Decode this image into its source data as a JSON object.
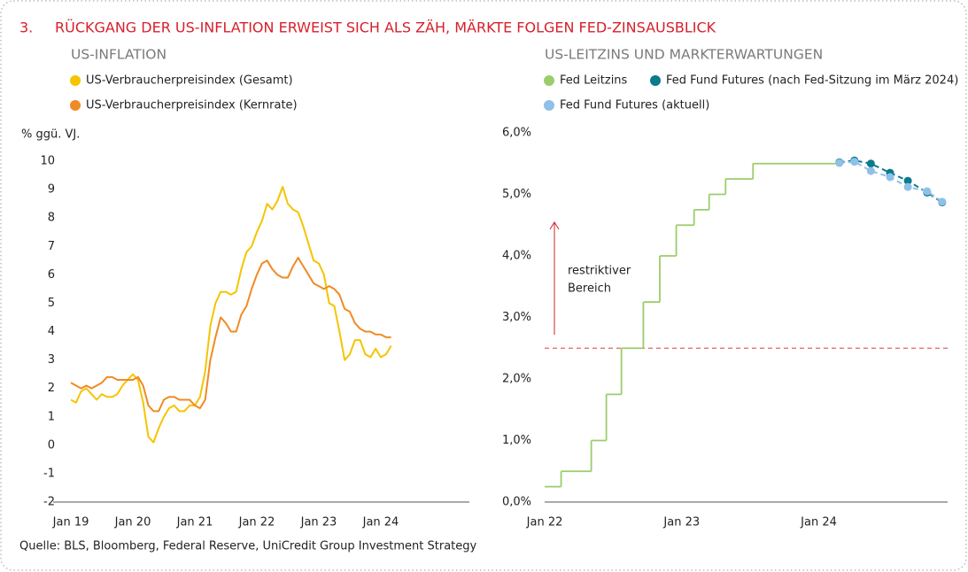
{
  "header": {
    "number": "3.",
    "title": "RÜCKGANG DER US-INFLATION ERWEIST SICH ALS ZÄH, MÄRKTE FOLGEN FED-ZINSAUSBLICK"
  },
  "chart_data": [
    {
      "type": "line",
      "title": "US-INFLATION",
      "y_label": "% ggü. VJ.",
      "categories": [
        "Jan 19",
        null,
        null,
        null,
        null,
        null,
        null,
        null,
        null,
        null,
        null,
        null,
        "Jan 20",
        null,
        null,
        null,
        null,
        null,
        null,
        null,
        null,
        null,
        null,
        null,
        "Jan 21",
        null,
        null,
        null,
        null,
        null,
        null,
        null,
        null,
        null,
        null,
        null,
        "Jan 22",
        null,
        null,
        null,
        null,
        null,
        null,
        null,
        null,
        null,
        null,
        null,
        "Jan 23",
        null,
        null,
        null,
        null,
        null,
        null,
        null,
        null,
        null,
        null,
        null,
        "Jan 24",
        null,
        null
      ],
      "series": [
        {
          "name": "US-Verbraucherpreisindex (Gesamt)",
          "color": "#f5c400",
          "values": [
            1.6,
            1.5,
            1.9,
            2.0,
            1.8,
            1.6,
            1.8,
            1.7,
            1.7,
            1.8,
            2.1,
            2.3,
            2.5,
            2.3,
            1.5,
            0.3,
            0.1,
            0.6,
            1.0,
            1.3,
            1.4,
            1.2,
            1.2,
            1.4,
            1.4,
            1.7,
            2.6,
            4.2,
            5.0,
            5.4,
            5.4,
            5.3,
            5.4,
            6.2,
            6.8,
            7.0,
            7.5,
            7.9,
            8.5,
            8.3,
            8.6,
            9.1,
            8.5,
            8.3,
            8.2,
            7.7,
            7.1,
            6.5,
            6.4,
            6.0,
            5.0,
            4.9,
            4.0,
            3.0,
            3.2,
            3.7,
            3.7,
            3.2,
            3.1,
            3.4,
            3.1,
            3.2,
            3.5
          ]
        },
        {
          "name": "US-Verbraucherpreisindex (Kernrate)",
          "color": "#f08a24",
          "values": [
            2.2,
            2.1,
            2.0,
            2.1,
            2.0,
            2.1,
            2.2,
            2.4,
            2.4,
            2.3,
            2.3,
            2.3,
            2.3,
            2.4,
            2.1,
            1.4,
            1.2,
            1.2,
            1.6,
            1.7,
            1.7,
            1.6,
            1.6,
            1.6,
            1.4,
            1.3,
            1.6,
            3.0,
            3.8,
            4.5,
            4.3,
            4.0,
            4.0,
            4.6,
            4.9,
            5.5,
            6.0,
            6.4,
            6.5,
            6.2,
            6.0,
            5.9,
            5.9,
            6.3,
            6.6,
            6.3,
            6.0,
            5.7,
            5.6,
            5.5,
            5.6,
            5.5,
            5.3,
            4.8,
            4.7,
            4.3,
            4.1,
            4.0,
            4.0,
            3.9,
            3.9,
            3.8,
            3.8
          ]
        }
      ],
      "ylim": [
        -2,
        10
      ],
      "yticks": [
        -2,
        -1,
        0,
        1,
        2,
        3,
        4,
        5,
        6,
        7,
        8,
        9,
        10
      ],
      "grid": false
    },
    {
      "type": "line",
      "title": "US-LEITZINS UND MARKTERWARTUNGEN",
      "series": [
        {
          "name": "Fed Leitzins",
          "color": "#9ccc6c",
          "step": true,
          "x": [
            2022.0,
            2022.12,
            2022.34,
            2022.45,
            2022.56,
            2022.72,
            2022.84,
            2022.96,
            2023.09,
            2023.2,
            2023.32,
            2023.52,
            2024.14
          ],
          "values": [
            0.25,
            0.5,
            1.0,
            1.75,
            2.5,
            3.25,
            4.0,
            4.5,
            4.75,
            5.0,
            5.25,
            5.5,
            5.5
          ]
        },
        {
          "name": "Fed Fund Futures (nach Fed-Sitzung im März 2024)",
          "color": "#0a7a8c",
          "dashed": true,
          "markers": true,
          "x": [
            2024.15,
            2024.26,
            2024.38,
            2024.52,
            2024.65,
            2024.79,
            2024.9
          ],
          "values": [
            5.52,
            5.55,
            5.5,
            5.35,
            5.22,
            5.03,
            4.87
          ]
        },
        {
          "name": "Fed Fund Futures (aktuell)",
          "color": "#8fc0e8",
          "dashed": true,
          "markers": true,
          "x": [
            2024.15,
            2024.26,
            2024.38,
            2024.52,
            2024.65,
            2024.79,
            2024.9
          ],
          "values": [
            5.51,
            5.53,
            5.38,
            5.28,
            5.12,
            5.05,
            4.88
          ]
        }
      ],
      "xlim": [
        2022,
        2024.94
      ],
      "xticks": [
        {
          "value": 2022,
          "label": "Jan 22"
        },
        {
          "value": 2023,
          "label": "Jan 23"
        },
        {
          "value": 2024,
          "label": "Jan 24"
        }
      ],
      "ylim": [
        0,
        6
      ],
      "yticks": [
        {
          "value": 0,
          "label": "0,0%"
        },
        {
          "value": 1,
          "label": "1,0%"
        },
        {
          "value": 2,
          "label": "2,0%"
        },
        {
          "value": 3,
          "label": "3,0%"
        },
        {
          "value": 4,
          "label": "4,0%"
        },
        {
          "value": 5,
          "label": "5,0%"
        },
        {
          "value": 6,
          "label": "6,0%"
        }
      ],
      "threshold": {
        "value": 2.5,
        "color": "#e8606a"
      },
      "annotation": [
        "restriktiver",
        "Bereich"
      ],
      "grid": false
    }
  ],
  "source": "Quelle: BLS, Bloomberg, Federal Reserve, UniCredit Group Investment Strategy"
}
